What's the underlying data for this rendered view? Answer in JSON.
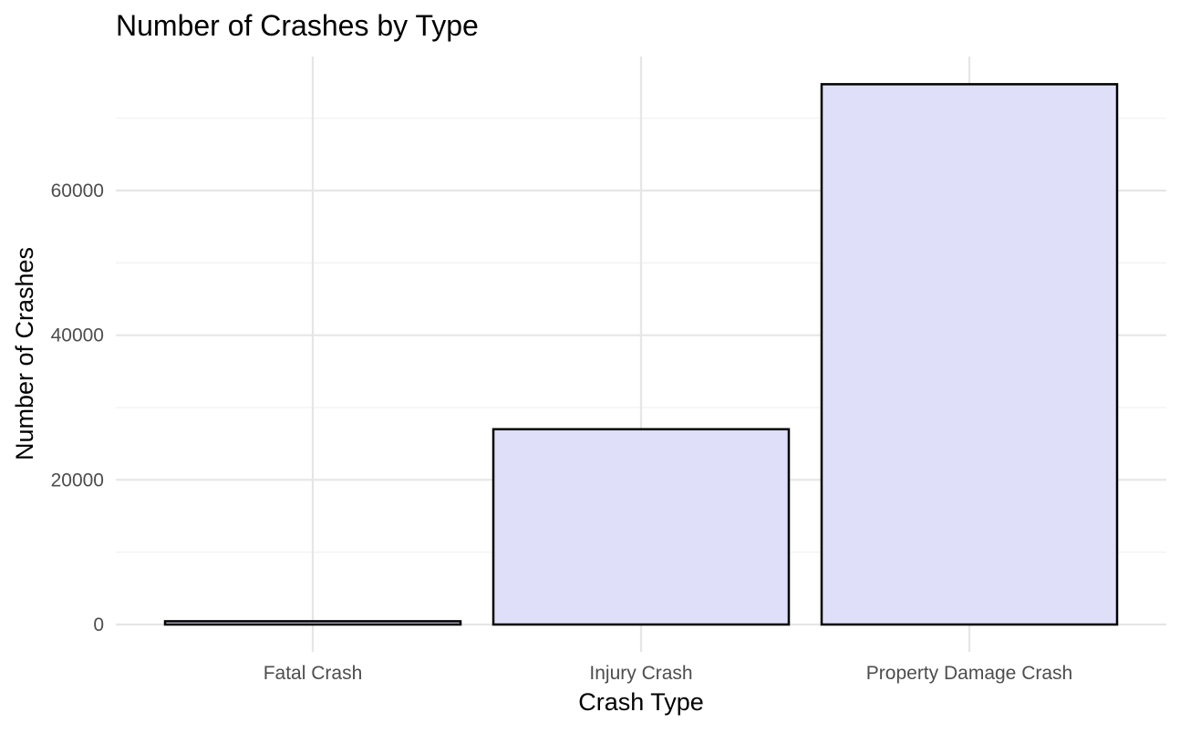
{
  "chart_data": {
    "type": "bar",
    "title": "Number of Crashes by Type",
    "xlabel": "Crash Type",
    "ylabel": "Number of Crashes",
    "categories": [
      "Fatal Crash",
      "Injury Crash",
      "Property Damage Crash"
    ],
    "values": [
      450,
      27000,
      74700
    ],
    "ylim": [
      0,
      80000
    ],
    "yticks": [
      0,
      20000,
      40000,
      60000
    ],
    "grid": true,
    "legend": "none",
    "colors": {
      "bar_fill": "#dfdffa",
      "bar_stroke": "#000000",
      "grid_major": "#e6e6e6",
      "grid_minor": "#f0f0f0",
      "tick_text": "#4d4d4d",
      "title_text": "#000000"
    }
  }
}
